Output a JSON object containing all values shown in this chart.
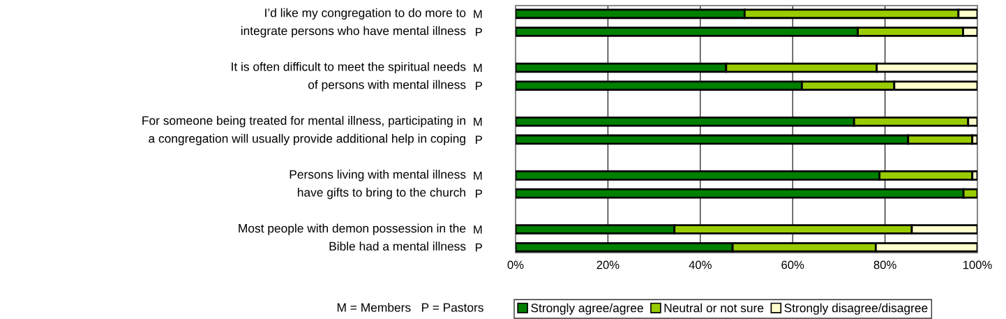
{
  "chart_data": {
    "type": "bar",
    "orientation": "horizontal",
    "stacked": true,
    "categories": [
      "M",
      "P",
      null,
      "M",
      "P",
      null,
      "M",
      "P",
      null,
      "M",
      "P",
      null,
      "M",
      "P"
    ],
    "series": [
      {
        "name": "Strongly agree/agree",
        "color": "#008000",
        "values": [
          49.6,
          74.1,
          null,
          45.6,
          62.0,
          null,
          73.3,
          85.0,
          null,
          78.8,
          97.0,
          null,
          34.4,
          47.0
        ]
      },
      {
        "name": "Neutral or not sure",
        "color": "#99cc00",
        "values": [
          46.3,
          22.8,
          null,
          32.6,
          20.0,
          null,
          24.7,
          13.9,
          null,
          20.1,
          3.0,
          null,
          51.4,
          31.0
        ]
      },
      {
        "name": "Strongly disagree/disagree",
        "color": "#ffffcc",
        "values": [
          4.1,
          3.1,
          null,
          21.8,
          18.0,
          null,
          2.0,
          1.1,
          null,
          1.1,
          null,
          null,
          14.2,
          22.0
        ]
      }
    ],
    "xlim": [
      0,
      100
    ],
    "xticks": [
      {
        "value": 0,
        "label": "0%"
      },
      {
        "value": 20,
        "label": "20%"
      },
      {
        "value": 40,
        "label": "40%"
      },
      {
        "value": 60,
        "label": "60%"
      },
      {
        "value": 80,
        "label": "80%"
      },
      {
        "value": 100,
        "label": "100%"
      }
    ],
    "grid": "x",
    "legend": "bottom",
    "annotations": [
      "I’d like my congregation to do more to\nintegrate persons who have mental illness",
      "It is often difficult to meet the spiritual needs\nof persons with mental illness",
      "For someone being treated for mental illness, participating in\na congregation will usually provide additional help in coping",
      "Persons living with mental illness\nhave gifts to bring to the church",
      "Most people with demon possession in the\nBible had a mental illness",
      "M = Members   P = Pastors"
    ]
  }
}
